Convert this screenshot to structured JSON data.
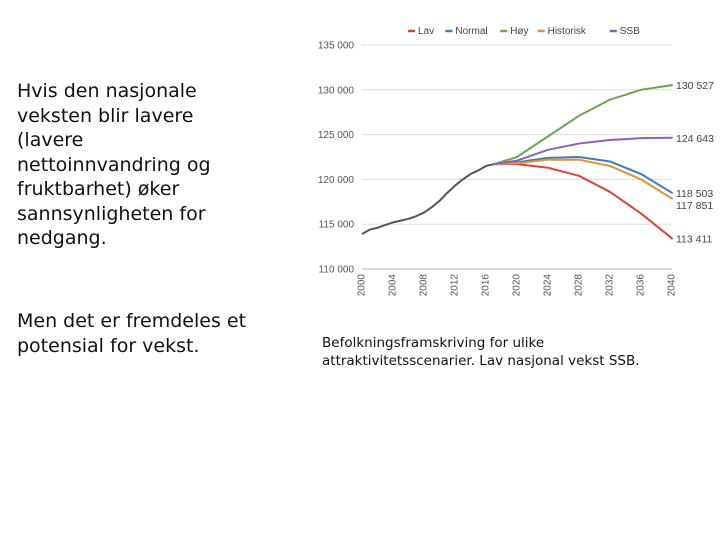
{
  "left_text": {
    "paragraph1": "Hvis den nasjonale veksten blir lavere (lavere nettoinnvandring og fruktbarhet) øker sannsynligheten for nedgang.",
    "paragraph2": "Men det er fremdeles et potensial for vekst."
  },
  "caption": "Befolkningsframskriving for ulike attraktivitetsscenarier. Lav nasjonal vekst SSB.",
  "chart_data": {
    "type": "line",
    "title": "",
    "xlabel": "",
    "ylabel": "",
    "xlim": [
      2000,
      2040
    ],
    "ylim": [
      110000,
      135000
    ],
    "y_ticks": [
      110000,
      115000,
      120000,
      125000,
      130000,
      135000
    ],
    "y_tick_labels": [
      "110 000",
      "115 000",
      "120 000",
      "125 000",
      "130 000",
      "135 000"
    ],
    "x_ticks": [
      2000,
      2004,
      2008,
      2012,
      2016,
      2020,
      2024,
      2028,
      2032,
      2036,
      2040
    ],
    "x_tick_labels": [
      "2000",
      "2004",
      "2008",
      "2012",
      "2016",
      "2020",
      "2024",
      "2028",
      "2032",
      "2036",
      "2040"
    ],
    "grid": "horizontal",
    "legend_position": "top",
    "end_labels": [
      "130 527",
      "124 643",
      "118 503",
      "117 851",
      "113 411"
    ],
    "historical": {
      "color": "#555555",
      "x": [
        2000,
        2001,
        2002,
        2003,
        2004,
        2005,
        2006,
        2007,
        2008,
        2009,
        2010,
        2011,
        2012,
        2013,
        2014,
        2015,
        2016,
        2017
      ],
      "y": [
        113900,
        114400,
        114600,
        114900,
        115200,
        115400,
        115600,
        115900,
        116300,
        116900,
        117600,
        118500,
        119300,
        120000,
        120600,
        121000,
        121500,
        121700
      ]
    },
    "series": [
      {
        "name": "Lav",
        "color": "#d9463c",
        "x": [
          2017,
          2020,
          2024,
          2028,
          2032,
          2036,
          2040
        ],
        "y": [
          121700,
          121700,
          121300,
          120400,
          118600,
          116200,
          113411
        ]
      },
      {
        "name": "Normal",
        "color": "#3b7dbf",
        "x": [
          2017,
          2020,
          2024,
          2028,
          2032,
          2036,
          2040
        ],
        "y": [
          121700,
          121900,
          122400,
          122500,
          122000,
          120600,
          118503
        ]
      },
      {
        "name": "Høy",
        "color": "#6aa84f",
        "x": [
          2017,
          2020,
          2024,
          2028,
          2032,
          2036,
          2040
        ],
        "y": [
          121700,
          122500,
          124800,
          127100,
          128900,
          130000,
          130527
        ]
      },
      {
        "name": "Historisk",
        "color": "#e69138",
        "x": [
          2017,
          2020,
          2024,
          2028,
          2032,
          2036,
          2040
        ],
        "y": [
          121700,
          121800,
          122200,
          122200,
          121500,
          120000,
          117851
        ]
      },
      {
        "name": "SSB",
        "color": "#8e5fbf",
        "x": [
          2017,
          2020,
          2024,
          2028,
          2032,
          2036,
          2040
        ],
        "y": [
          121700,
          122100,
          123300,
          124000,
          124400,
          124600,
          124643
        ]
      }
    ]
  }
}
